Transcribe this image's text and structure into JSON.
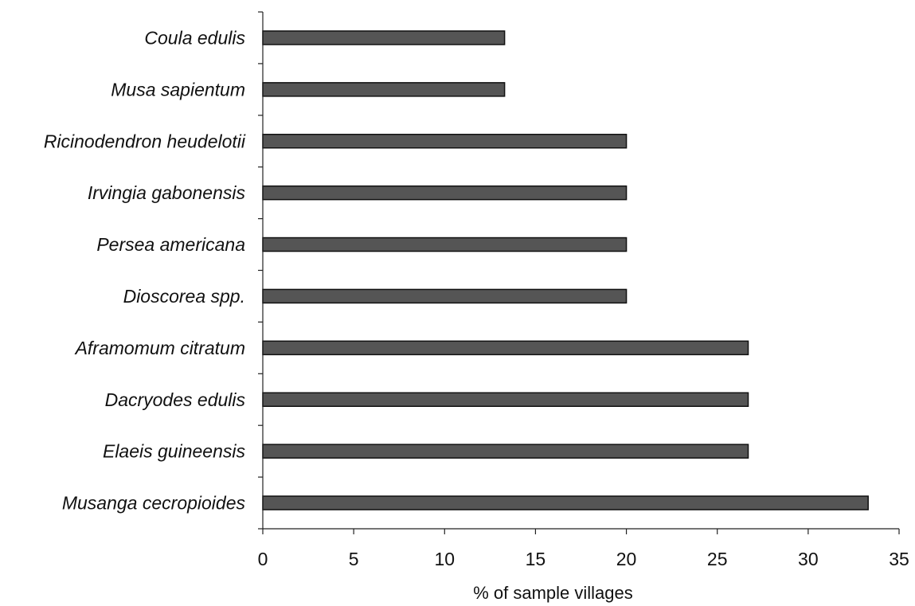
{
  "chart_data": {
    "type": "bar",
    "orientation": "horizontal",
    "categories": [
      "Coula edulis",
      "Musa sapientum",
      "Ricinodendron heudelotii",
      "Irvingia gabonensis",
      "Persea americana",
      "Dioscorea spp.",
      "Aframomum citratum",
      "Dacryodes edulis",
      "Elaeis guineensis",
      "Musanga cecropioides"
    ],
    "values": [
      13.3,
      13.3,
      20,
      20,
      20,
      20,
      26.7,
      26.7,
      26.7,
      33.3
    ],
    "title": "",
    "xlabel": "% of sample villages",
    "ylabel": "",
    "xlim": [
      0,
      35
    ],
    "xticks": [
      "0",
      "5",
      "10",
      "15",
      "20",
      "25",
      "30",
      "35"
    ],
    "grid": false,
    "legend": "none",
    "bar_color": "#555555"
  }
}
